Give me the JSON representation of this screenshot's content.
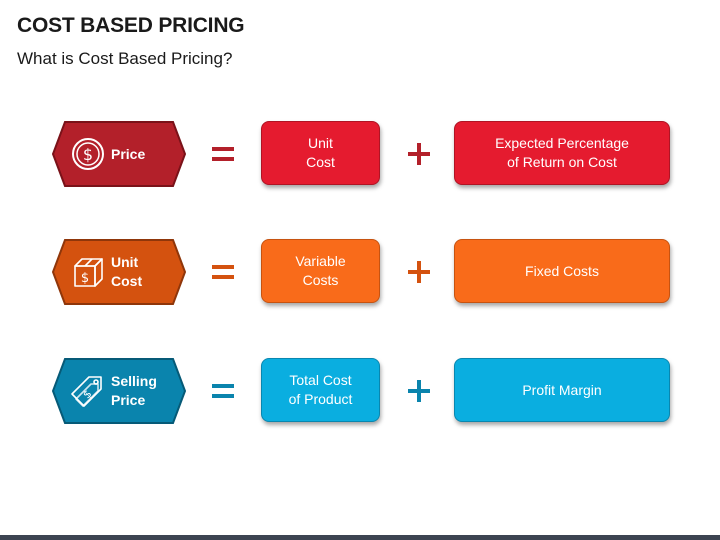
{
  "header": {
    "title": "COST BASED PRICING",
    "subtitle": "What is Cost Based Pricing?"
  },
  "rows": [
    {
      "label_line1": "Price",
      "label_line2": "",
      "icon": "dollar-coin-icon",
      "box1_line1": "Unit",
      "box1_line2": "Cost",
      "box2_line1": "Expected Percentage",
      "box2_line2": "of Return on Cost",
      "hex_color": "#b3202a",
      "hex_border": "#7a1219",
      "box_color": "#e51b2f",
      "box_border": "#b01424",
      "op_color": "#b3202a"
    },
    {
      "label_line1": "Unit",
      "label_line2": "Cost",
      "icon": "dollar-box-icon",
      "box1_line1": "Variable",
      "box1_line2": "Costs",
      "box2_line1": "Fixed Costs",
      "box2_line2": "",
      "hex_color": "#d4520f",
      "hex_border": "#8f360a",
      "box_color": "#f96b1a",
      "box_border": "#c75310",
      "op_color": "#d4520f"
    },
    {
      "label_line1": "Selling",
      "label_line2": "Price",
      "icon": "price-tag-icon",
      "box1_line1": "Total Cost",
      "box1_line2": "of Product",
      "box2_line1": "Profit Margin",
      "box2_line2": "",
      "hex_color": "#0a84ad",
      "hex_border": "#065a77",
      "box_color": "#0aaee0",
      "box_border": "#0887b0",
      "op_color": "#0a84ad"
    }
  ]
}
